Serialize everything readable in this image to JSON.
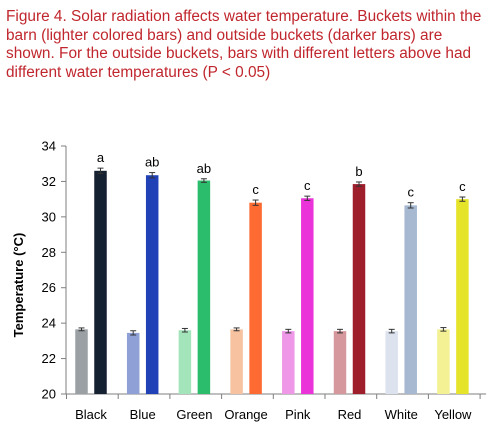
{
  "caption": "Figure 4. Solar radiation affects water temperature. Buckets within the barn (lighter colored bars) and outside buckets (darker bars) are shown.  For the outside buckets, bars with different letters above had different water temperatures (P < 0.05)",
  "chart_data": {
    "type": "bar",
    "ylabel": "Temperature (°C)",
    "xlabel": "",
    "ylim": [
      20,
      34
    ],
    "yticks": [
      20,
      22,
      24,
      26,
      28,
      30,
      32,
      34
    ],
    "grid": false,
    "legend": "none",
    "categories": [
      "Black",
      "Blue",
      "Green",
      "Orange",
      "Pink",
      "Red",
      "White",
      "Yellow"
    ],
    "series": [
      {
        "group": "within barn (lighter)",
        "values": [
          23.65,
          23.45,
          23.6,
          23.65,
          23.55,
          23.55,
          23.55,
          23.65
        ],
        "errors": [
          0.08,
          0.12,
          0.1,
          0.08,
          0.1,
          0.1,
          0.1,
          0.1
        ],
        "colors": [
          "#9aa0a3",
          "#8fa0d6",
          "#a3e4bb",
          "#f6c2a0",
          "#ef98e7",
          "#d5989d",
          "#dce3ef",
          "#f3f194"
        ]
      },
      {
        "group": "outside (darker)",
        "values": [
          32.6,
          32.35,
          32.05,
          30.8,
          31.05,
          31.85,
          30.65,
          31.0
        ],
        "errors": [
          0.15,
          0.15,
          0.1,
          0.15,
          0.12,
          0.12,
          0.15,
          0.12
        ],
        "colors": [
          "#152130",
          "#2042b6",
          "#2cbd6c",
          "#fd6b33",
          "#ea34d9",
          "#9e1e2c",
          "#a6b9d0",
          "#e5e32a"
        ],
        "letters": [
          "a",
          "ab",
          "ab",
          "c",
          "c",
          "b",
          "c",
          "c"
        ]
      }
    ]
  }
}
